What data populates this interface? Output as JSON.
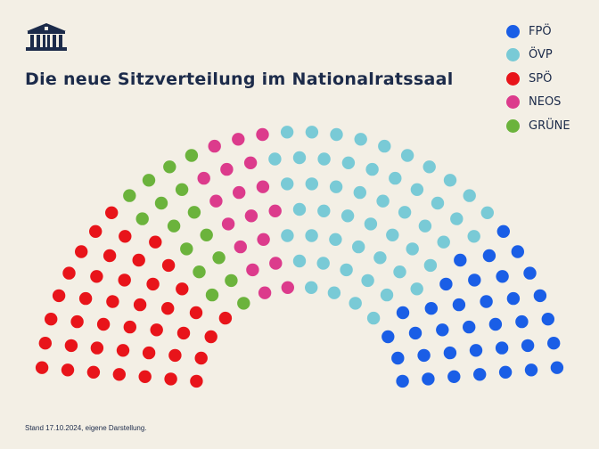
{
  "title": "Die neue Sitzverteilung im Nationalratssaal",
  "footnote": "Stand 17.10.2024, eigene Darstellung.",
  "logo_icon": "parliament-building-icon",
  "parties": [
    {
      "name": "FPÖ",
      "color": "#1a5ee6",
      "seats": 57
    },
    {
      "name": "ÖVP",
      "color": "#79cad6",
      "seats": 51
    },
    {
      "name": "SPÖ",
      "color": "#e8141a",
      "seats": 41
    },
    {
      "name": "NEOS",
      "color": "#dc3b8c",
      "seats": 18
    },
    {
      "name": "GRÜNE",
      "color": "#6bb33c",
      "seats": 16
    }
  ],
  "chart_data": {
    "type": "parliament",
    "series": [
      {
        "name": "FPÖ",
        "value": 57
      },
      {
        "name": "ÖVP",
        "value": 51
      },
      {
        "name": "SPÖ",
        "value": 41
      },
      {
        "name": "NEOS",
        "value": 18
      },
      {
        "name": "GRÜNE",
        "value": 16
      }
    ],
    "total_seats": 183,
    "legend_position": "top-right"
  }
}
